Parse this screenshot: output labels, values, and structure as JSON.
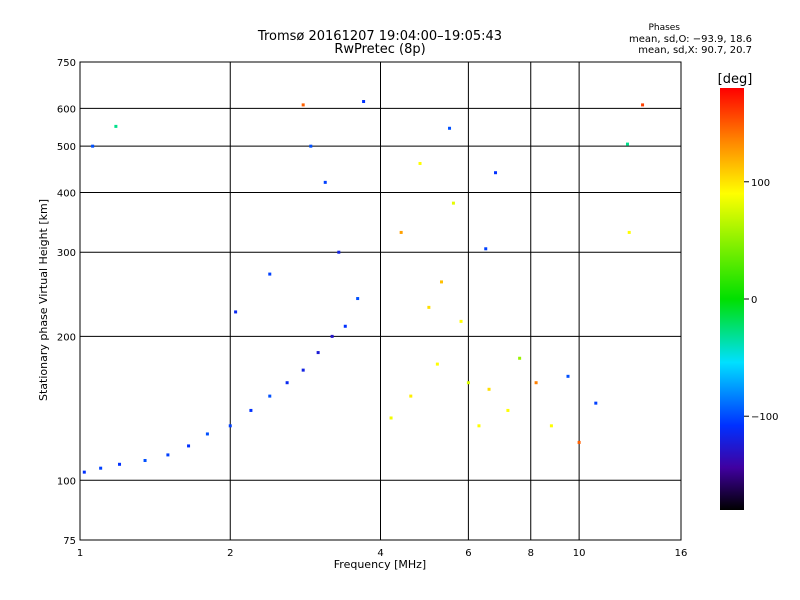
{
  "header": {
    "title_line1": "Tromsø 20161207 19:04:00–19:05:43",
    "title_line2": "RwPretec (8p)",
    "phases_title": "Phases",
    "phases_o": "mean, sd,O: −93.9, 18.6",
    "phases_x": "mean, sd,X:  90.7, 20.7"
  },
  "chart_data": {
    "type": "scatter",
    "xlabel": "Frequency [MHz]",
    "ylabel": "Stationary phase Virtual Height [km]",
    "x_scale": "log",
    "y_scale": "log",
    "xlim": [
      1,
      16
    ],
    "ylim": [
      75,
      750
    ],
    "x_ticks": [
      1,
      2,
      4,
      6,
      8,
      10,
      16
    ],
    "x_tick_labels": [
      "1",
      "2",
      "4",
      "6",
      "8",
      "10",
      "16"
    ],
    "y_ticks": [
      75,
      100,
      200,
      300,
      400,
      500,
      600,
      750
    ],
    "y_tick_labels": [
      "75",
      "100",
      "200",
      "300",
      "400",
      "500",
      "600",
      "750"
    ],
    "grid": true,
    "colorbar": {
      "label": "[deg]",
      "range": [
        -180,
        180
      ],
      "ticks": [
        100,
        0,
        -100
      ],
      "tick_labels": [
        "100",
        "0",
        "−100"
      ]
    },
    "series": [
      {
        "values": [
          {
            "x": 1.02,
            "y": 104,
            "phase": -110
          },
          {
            "x": 1.1,
            "y": 106,
            "phase": -105
          },
          {
            "x": 1.2,
            "y": 108,
            "phase": -110
          },
          {
            "x": 1.35,
            "y": 110,
            "phase": -100
          },
          {
            "x": 1.5,
            "y": 113,
            "phase": -105
          },
          {
            "x": 1.65,
            "y": 118,
            "phase": -110
          },
          {
            "x": 1.8,
            "y": 125,
            "phase": -100
          },
          {
            "x": 2.0,
            "y": 130,
            "phase": -105
          },
          {
            "x": 2.2,
            "y": 140,
            "phase": -110
          },
          {
            "x": 2.4,
            "y": 150,
            "phase": -100
          },
          {
            "x": 2.6,
            "y": 160,
            "phase": -115
          },
          {
            "x": 2.8,
            "y": 170,
            "phase": -120
          },
          {
            "x": 3.0,
            "y": 185,
            "phase": -125
          },
          {
            "x": 3.2,
            "y": 200,
            "phase": -130
          },
          {
            "x": 3.4,
            "y": 210,
            "phase": -110
          },
          {
            "x": 3.6,
            "y": 240,
            "phase": -100
          },
          {
            "x": 3.3,
            "y": 300,
            "phase": -120
          },
          {
            "x": 3.1,
            "y": 420,
            "phase": -105
          },
          {
            "x": 2.9,
            "y": 500,
            "phase": -100
          },
          {
            "x": 2.4,
            "y": 270,
            "phase": -105
          },
          {
            "x": 2.8,
            "y": 610,
            "phase": 150
          },
          {
            "x": 3.7,
            "y": 620,
            "phase": -110
          },
          {
            "x": 4.2,
            "y": 135,
            "phase": 95
          },
          {
            "x": 4.4,
            "y": 330,
            "phase": 130
          },
          {
            "x": 4.6,
            "y": 150,
            "phase": 105
          },
          {
            "x": 4.8,
            "y": 460,
            "phase": 100
          },
          {
            "x": 5.0,
            "y": 230,
            "phase": 110
          },
          {
            "x": 5.2,
            "y": 175,
            "phase": 100
          },
          {
            "x": 5.3,
            "y": 260,
            "phase": 120
          },
          {
            "x": 5.5,
            "y": 545,
            "phase": -100
          },
          {
            "x": 5.6,
            "y": 380,
            "phase": 90
          },
          {
            "x": 5.8,
            "y": 215,
            "phase": 100
          },
          {
            "x": 6.0,
            "y": 160,
            "phase": 85
          },
          {
            "x": 6.3,
            "y": 130,
            "phase": 100
          },
          {
            "x": 6.5,
            "y": 305,
            "phase": -105
          },
          {
            "x": 6.6,
            "y": 155,
            "phase": 110
          },
          {
            "x": 6.8,
            "y": 440,
            "phase": -110
          },
          {
            "x": 7.2,
            "y": 140,
            "phase": 100
          },
          {
            "x": 7.6,
            "y": 180,
            "phase": 60
          },
          {
            "x": 8.2,
            "y": 160,
            "phase": 140
          },
          {
            "x": 8.8,
            "y": 130,
            "phase": 100
          },
          {
            "x": 9.5,
            "y": 165,
            "phase": -100
          },
          {
            "x": 10.0,
            "y": 120,
            "phase": 150
          },
          {
            "x": 10.8,
            "y": 145,
            "phase": -105
          },
          {
            "x": 12.5,
            "y": 505,
            "phase": -30
          },
          {
            "x": 13.4,
            "y": 610,
            "phase": 160
          },
          {
            "x": 12.6,
            "y": 330,
            "phase": 100
          },
          {
            "x": 1.18,
            "y": 550,
            "phase": -30
          },
          {
            "x": 1.06,
            "y": 500,
            "phase": -100
          },
          {
            "x": 2.05,
            "y": 225,
            "phase": -115
          }
        ]
      }
    ]
  }
}
